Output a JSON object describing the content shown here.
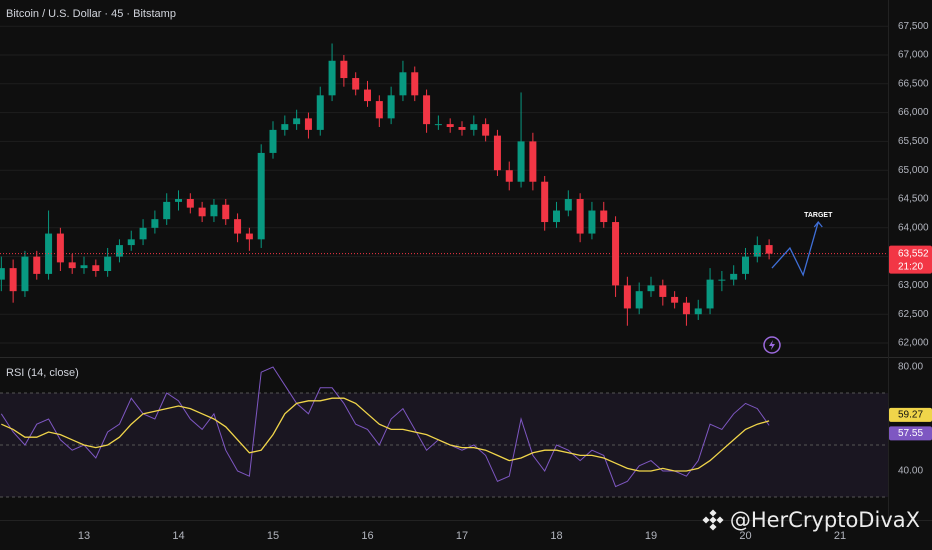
{
  "chart_data": [
    {
      "type": "candlestick",
      "title": "Bitcoin / U.S. Dollar · 45 · Bitstamp",
      "x": [
        12.125,
        12.25,
        12.375,
        12.5,
        12.625,
        12.75,
        12.875,
        13,
        13.125,
        13.25,
        13.375,
        13.5,
        13.625,
        13.75,
        13.875,
        14,
        14.125,
        14.25,
        14.375,
        14.5,
        14.625,
        14.75,
        14.875,
        15,
        15.125,
        15.25,
        15.375,
        15.5,
        15.625,
        15.75,
        15.875,
        16,
        16.125,
        16.25,
        16.375,
        16.5,
        16.625,
        16.75,
        16.875,
        17,
        17.125,
        17.25,
        17.375,
        17.5,
        17.625,
        17.75,
        17.875,
        18,
        18.125,
        18.25,
        18.375,
        18.5,
        18.625,
        18.75,
        18.875,
        19,
        19.125,
        19.25,
        19.375,
        19.5,
        19.625,
        19.75,
        19.875,
        20,
        20.125,
        20.25
      ],
      "open": [
        63100,
        63300,
        62900,
        63500,
        63200,
        63900,
        63400,
        63300,
        63350,
        63250,
        63500,
        63700,
        63800,
        64000,
        64150,
        64450,
        64500,
        64350,
        64200,
        64400,
        64150,
        63900,
        63800,
        65300,
        65700,
        65800,
        65900,
        65700,
        66300,
        66900,
        66600,
        66400,
        66200,
        65900,
        66300,
        66700,
        66300,
        65800,
        65800,
        65750,
        65700,
        65800,
        65600,
        65000,
        64800,
        65500,
        64800,
        64100,
        64300,
        64500,
        63900,
        64300,
        64100,
        63000,
        62600,
        62900,
        63000,
        62800,
        62700,
        62500,
        62600,
        63100,
        63100,
        63200,
        63500,
        63700
      ],
      "high": [
        63500,
        63450,
        63600,
        63600,
        64300,
        64000,
        63550,
        63500,
        63450,
        63650,
        63800,
        63950,
        64150,
        64300,
        64600,
        64650,
        64600,
        64450,
        64500,
        64500,
        64250,
        64000,
        65450,
        65850,
        65950,
        66050,
        66000,
        66450,
        67200,
        67000,
        66700,
        66550,
        66300,
        66450,
        66900,
        66800,
        66400,
        65950,
        65900,
        65850,
        65950,
        65900,
        65700,
        65150,
        66350,
        65650,
        64900,
        64450,
        64650,
        64600,
        64450,
        64450,
        64200,
        63150,
        63050,
        63150,
        63100,
        62900,
        62800,
        62750,
        63300,
        63250,
        63350,
        63650,
        63850,
        63800
      ],
      "low": [
        62900,
        62700,
        62800,
        63100,
        63100,
        63250,
        63200,
        63200,
        63150,
        63150,
        63400,
        63600,
        63700,
        63900,
        64050,
        64300,
        64250,
        64100,
        64100,
        64050,
        63750,
        63600,
        63650,
        65200,
        65600,
        65700,
        65550,
        65600,
        66200,
        66450,
        66300,
        66100,
        65750,
        65800,
        66200,
        66200,
        65650,
        65700,
        65650,
        65600,
        65600,
        65500,
        64900,
        64650,
        64700,
        64650,
        63950,
        64000,
        64200,
        63750,
        63800,
        64000,
        62800,
        62300,
        62500,
        62800,
        62650,
        62600,
        62300,
        62400,
        62500,
        62900,
        63000,
        63100,
        63400,
        63452
      ],
      "close": [
        63300,
        62900,
        63500,
        63200,
        63900,
        63400,
        63300,
        63350,
        63250,
        63500,
        63700,
        63800,
        64000,
        64150,
        64450,
        64500,
        64350,
        64200,
        64400,
        64150,
        63900,
        63800,
        65300,
        65700,
        65800,
        65900,
        65700,
        66300,
        66900,
        66600,
        66400,
        66200,
        65900,
        66300,
        66700,
        66300,
        65800,
        65800,
        65750,
        65700,
        65800,
        65600,
        65000,
        64800,
        65500,
        64800,
        64100,
        64300,
        64500,
        63900,
        64300,
        64100,
        63000,
        62600,
        62900,
        63000,
        62800,
        62700,
        62500,
        62600,
        63100,
        63100,
        63200,
        63500,
        63700,
        63552
      ],
      "up_color": "#089981",
      "down_color": "#f23645",
      "xlim": [
        12.111,
        21.508
      ],
      "xticks": [
        13,
        14,
        15,
        16,
        17,
        18,
        19,
        20,
        21
      ],
      "ylim": [
        61757,
        67955
      ],
      "yticks": [
        {
          "value": 62000,
          "label": "62,000"
        },
        {
          "value": 62500,
          "label": "62,500"
        },
        {
          "value": 63000,
          "label": "63,000"
        },
        {
          "value": 63500,
          "label": "63,500"
        },
        {
          "value": 64000,
          "label": "64,000"
        },
        {
          "value": 64500,
          "label": "64,500"
        },
        {
          "value": 65000,
          "label": "65,000"
        },
        {
          "value": 65500,
          "label": "65,500"
        },
        {
          "value": 66000,
          "label": "66,000"
        },
        {
          "value": 66500,
          "label": "66,500"
        },
        {
          "value": 67000,
          "label": "67,000"
        },
        {
          "value": 67500,
          "label": "67,500"
        }
      ],
      "grid": true,
      "last_price": {
        "value": 63552,
        "label": "63,552"
      },
      "countdown": "21:20",
      "annotation": {
        "text": "TARGET",
        "x": [
          20.28,
          20.47,
          20.61,
          20.77
        ],
        "y": [
          63302,
          63649,
          63181,
          64101
        ],
        "color": "#3f6fd8"
      }
    },
    {
      "type": "line",
      "title": "RSI (14, close)",
      "ylim": [
        21.15,
        83.85
      ],
      "yticks": [
        {
          "value": 80,
          "label": "80.00"
        },
        {
          "value": 40,
          "label": "40.00"
        }
      ],
      "hlines": [
        70,
        50,
        30
      ],
      "series": [
        {
          "color": "#7e57c2",
          "values": [
            62,
            55,
            50,
            58,
            60,
            52,
            48,
            50,
            45,
            55,
            58,
            68,
            62,
            60,
            70,
            67,
            60,
            56,
            62,
            48,
            40,
            38,
            78,
            80,
            73,
            66,
            62,
            72,
            72,
            66,
            58,
            56,
            50,
            60,
            64,
            56,
            48,
            52,
            50,
            48,
            50,
            46,
            36,
            38,
            60,
            46,
            40,
            50,
            48,
            44,
            48,
            46,
            34,
            36,
            42,
            44,
            40,
            40,
            38,
            44,
            58,
            56,
            62,
            66,
            64,
            57.55
          ]
        },
        {
          "color": "#f0d54a",
          "values": [
            58,
            56,
            53,
            53,
            55,
            54,
            52,
            50,
            49,
            50,
            53,
            58,
            62,
            63,
            64,
            65,
            64,
            62,
            60,
            57,
            52,
            47,
            48,
            54,
            62,
            66,
            67,
            67,
            68,
            68,
            66,
            62,
            58,
            56,
            56,
            55,
            54,
            52,
            50,
            49,
            49,
            48,
            46,
            44,
            45,
            47,
            48,
            48,
            47,
            46,
            46,
            45,
            43,
            41,
            40,
            40,
            41,
            40,
            40,
            41,
            44,
            48,
            52,
            56,
            58,
            59.27
          ]
        }
      ]
    }
  ],
  "watermark": "@HerCryptoDivaX"
}
